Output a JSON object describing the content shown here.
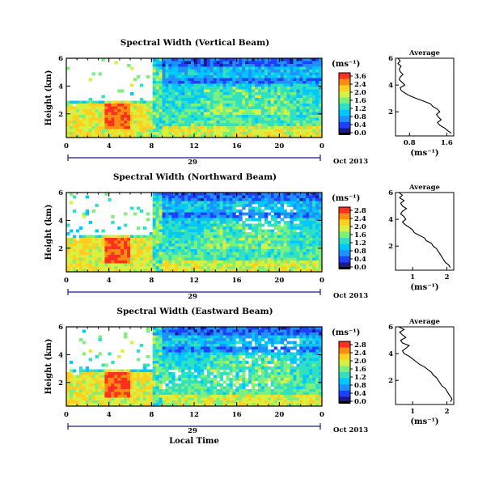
{
  "chart_data": [
    {
      "type": "heatmap",
      "title": "Spectral Width (Vertical Beam)",
      "ylabel": "Height (km)",
      "colorbar_label": "(ms⁻¹)",
      "colorbar_ticks": [
        "3.6",
        "2.4",
        "2.0",
        "1.6",
        "1.2",
        "0.8",
        "0.4",
        "0.0"
      ],
      "x_ticks": [
        "0",
        "4",
        "8",
        "12",
        "16",
        "20",
        "0"
      ],
      "y_ticks": [
        "6",
        "4",
        "2"
      ],
      "x_range": [
        0,
        24
      ],
      "y_range": [
        0.3,
        6
      ],
      "date_day": "29",
      "date_label": "Oct 2013",
      "profile": {
        "title": "Average",
        "xlabel": "(ms⁻¹)",
        "x_ticks": [
          "0.8",
          "1.6"
        ],
        "y_ticks": [
          "6",
          "4",
          "2"
        ],
        "x_range": [
          0.5,
          1.75
        ],
        "points": [
          [
            0.55,
            6.0
          ],
          [
            0.6,
            5.8
          ],
          [
            0.55,
            5.6
          ],
          [
            0.62,
            5.4
          ],
          [
            0.58,
            5.2
          ],
          [
            0.6,
            5.0
          ],
          [
            0.66,
            4.8
          ],
          [
            0.6,
            4.6
          ],
          [
            0.58,
            4.4
          ],
          [
            0.64,
            4.2
          ],
          [
            0.7,
            4.0
          ],
          [
            0.6,
            3.8
          ],
          [
            0.62,
            3.6
          ],
          [
            0.7,
            3.4
          ],
          [
            0.8,
            3.2
          ],
          [
            0.95,
            3.0
          ],
          [
            1.1,
            2.8
          ],
          [
            1.25,
            2.6
          ],
          [
            1.3,
            2.4
          ],
          [
            1.4,
            2.2
          ],
          [
            1.45,
            2.0
          ],
          [
            1.38,
            1.8
          ],
          [
            1.42,
            1.6
          ],
          [
            1.48,
            1.4
          ],
          [
            1.4,
            1.2
          ],
          [
            1.45,
            1.0
          ],
          [
            1.55,
            0.8
          ],
          [
            1.62,
            0.6
          ],
          [
            1.7,
            0.4
          ]
        ]
      }
    },
    {
      "type": "heatmap",
      "title": "Spectral Width (Northward Beam)",
      "ylabel": "Height (km)",
      "colorbar_label": "(ms⁻¹)",
      "colorbar_ticks": [
        "2.8",
        "2.4",
        "2.0",
        "1.6",
        "1.2",
        "0.8",
        "0.4",
        "0.0"
      ],
      "x_ticks": [
        "0",
        "4",
        "8",
        "12",
        "16",
        "20",
        "0"
      ],
      "y_ticks": [
        "6",
        "4",
        "2"
      ],
      "x_range": [
        0,
        24
      ],
      "y_range": [
        0.3,
        6
      ],
      "date_day": "29",
      "date_label": "Oct 2013",
      "profile": {
        "title": "Average",
        "xlabel": "(ms⁻¹)",
        "x_ticks": [
          "1",
          "2"
        ],
        "y_ticks": [
          "6",
          "4",
          "2"
        ],
        "x_range": [
          0.5,
          2.2
        ],
        "points": [
          [
            0.6,
            6.0
          ],
          [
            0.7,
            5.8
          ],
          [
            0.62,
            5.6
          ],
          [
            0.75,
            5.4
          ],
          [
            0.65,
            5.2
          ],
          [
            0.7,
            5.0
          ],
          [
            0.82,
            4.8
          ],
          [
            0.7,
            4.6
          ],
          [
            0.65,
            4.4
          ],
          [
            0.75,
            4.2
          ],
          [
            0.8,
            4.0
          ],
          [
            0.7,
            3.8
          ],
          [
            0.78,
            3.6
          ],
          [
            0.9,
            3.4
          ],
          [
            1.0,
            3.2
          ],
          [
            1.05,
            3.0
          ],
          [
            1.2,
            2.8
          ],
          [
            1.35,
            2.6
          ],
          [
            1.4,
            2.4
          ],
          [
            1.55,
            2.2
          ],
          [
            1.6,
            2.0
          ],
          [
            1.7,
            1.8
          ],
          [
            1.75,
            1.6
          ],
          [
            1.8,
            1.4
          ],
          [
            1.85,
            1.2
          ],
          [
            1.9,
            1.0
          ],
          [
            1.95,
            0.8
          ],
          [
            2.05,
            0.6
          ],
          [
            2.1,
            0.4
          ]
        ]
      }
    },
    {
      "type": "heatmap",
      "title": "Spectral Width (Eastward Beam)",
      "ylabel": "Height (km)",
      "xlabel": "Local Time",
      "colorbar_label": "(ms⁻¹)",
      "colorbar_ticks": [
        "2.8",
        "2.4",
        "2.0",
        "1.6",
        "1.2",
        "0.8",
        "0.4",
        "0.0"
      ],
      "x_ticks": [
        "0",
        "4",
        "8",
        "12",
        "16",
        "20",
        "0"
      ],
      "y_ticks": [
        "6",
        "4",
        "2"
      ],
      "x_range": [
        0,
        24
      ],
      "y_range": [
        0.3,
        6
      ],
      "date_day": "29",
      "date_label": "Oct 2013",
      "profile": {
        "title": "Average",
        "xlabel": "(ms⁻¹)",
        "x_ticks": [
          "1",
          "2"
        ],
        "y_ticks": [
          "6",
          "4",
          "2"
        ],
        "x_range": [
          0.5,
          2.2
        ],
        "points": [
          [
            0.6,
            6.0
          ],
          [
            0.75,
            5.8
          ],
          [
            0.62,
            5.6
          ],
          [
            0.7,
            5.4
          ],
          [
            0.8,
            5.2
          ],
          [
            0.65,
            5.0
          ],
          [
            0.7,
            4.8
          ],
          [
            0.9,
            4.6
          ],
          [
            0.8,
            4.4
          ],
          [
            0.7,
            4.2
          ],
          [
            0.75,
            4.0
          ],
          [
            0.9,
            3.8
          ],
          [
            1.0,
            3.6
          ],
          [
            1.1,
            3.4
          ],
          [
            1.2,
            3.2
          ],
          [
            1.35,
            3.0
          ],
          [
            1.45,
            2.8
          ],
          [
            1.55,
            2.6
          ],
          [
            1.6,
            2.4
          ],
          [
            1.7,
            2.2
          ],
          [
            1.75,
            2.0
          ],
          [
            1.8,
            1.8
          ],
          [
            1.85,
            1.6
          ],
          [
            1.95,
            1.4
          ],
          [
            2.0,
            1.2
          ],
          [
            2.05,
            1.0
          ],
          [
            2.1,
            0.8
          ],
          [
            2.15,
            0.6
          ],
          [
            2.1,
            0.4
          ]
        ]
      }
    }
  ],
  "palette": [
    "#000000",
    "#1a1a8c",
    "#2040ff",
    "#1e90ff",
    "#00c8ff",
    "#30e0c0",
    "#7cf07c",
    "#d8f040",
    "#ffd020",
    "#ff8c10",
    "#ff3020"
  ]
}
